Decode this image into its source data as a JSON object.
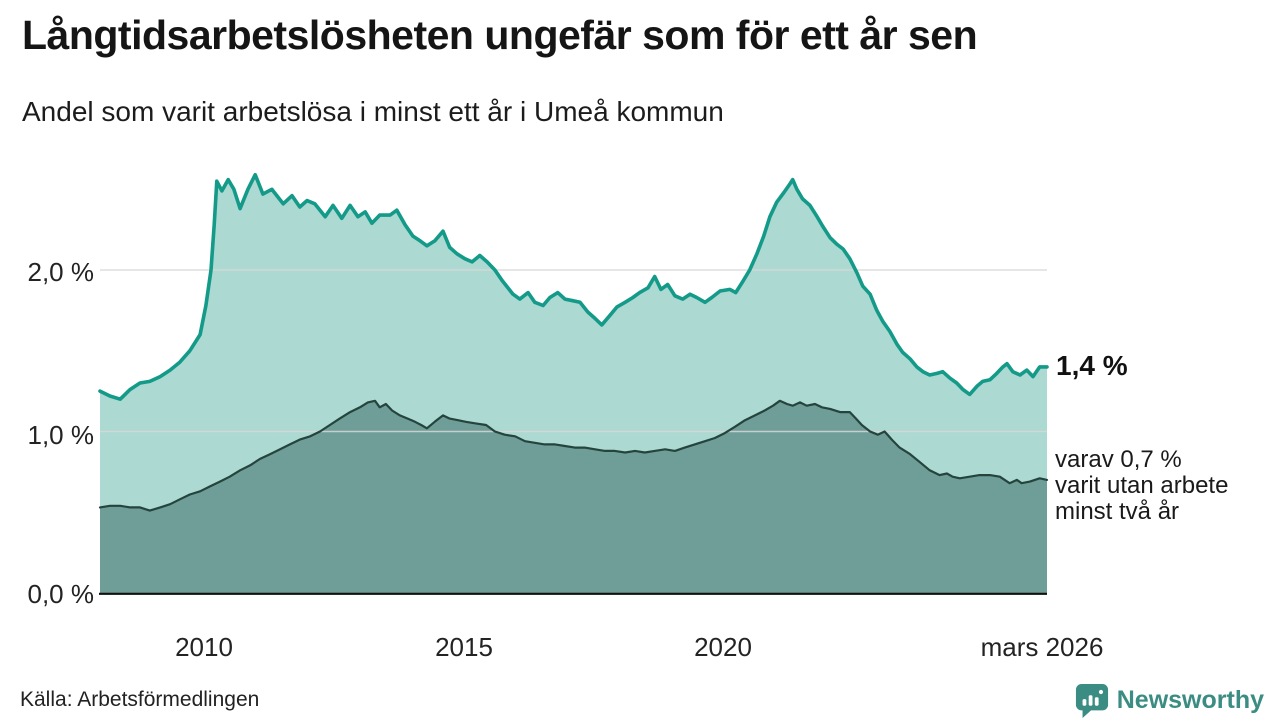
{
  "header": {
    "title": "Långtidsarbetslösheten ungefär som för ett år sen",
    "subtitle": "Andel som varit arbetslösa i minst ett år i Umeå kommun"
  },
  "source": {
    "label": "Källa: Arbetsförmedlingen"
  },
  "logo": {
    "brand": "Newsworthy",
    "color": "#3b8c82",
    "icon": "speech-bubble-bar-chart-icon"
  },
  "colors": {
    "background": "#ffffff",
    "series1_line": "#149a88",
    "series1_fill": "#acd9d2",
    "series2_line": "#25443e",
    "series2_fill": "#6f9e99",
    "gridline": "#d7d7d7",
    "axis": "#101010",
    "text": "#1a1a1a"
  },
  "chart_data": {
    "type": "area",
    "title": "Långtidsarbetslösheten ungefär som för ett år sen",
    "subtitle": "Andel som varit arbetslösa i minst ett år i Umeå kommun",
    "unit": "percent",
    "x_range": [
      2008.0,
      2026.25
    ],
    "y_range": [
      0,
      2.75
    ],
    "grid": "horizontal",
    "legend_position": "right-annotations",
    "x_ticks": [
      {
        "value": 2010,
        "label": "2010"
      },
      {
        "value": 2015,
        "label": "2015"
      },
      {
        "value": 2020,
        "label": "2020"
      },
      {
        "value": 2026.2,
        "label": "mars 2026"
      }
    ],
    "y_ticks": [
      {
        "value": 0.0,
        "label": "0,0 %"
      },
      {
        "value": 1.0,
        "label": "1,0 %"
      },
      {
        "value": 2.0,
        "label": "2,0 %"
      }
    ],
    "series": [
      {
        "name": "Andel som varit arbetslösa i minst ett år",
        "dataName": "unemployed-min-one-year",
        "color": "#149a88",
        "fill": "#acd9d2",
        "last_value": 1.4,
        "end_label": "1,4 %",
        "points": [
          [
            2008.0,
            1.25
          ],
          [
            2008.19,
            1.22
          ],
          [
            2008.39,
            1.2
          ],
          [
            2008.58,
            1.26
          ],
          [
            2008.77,
            1.3
          ],
          [
            2008.96,
            1.31
          ],
          [
            2009.16,
            1.34
          ],
          [
            2009.35,
            1.38
          ],
          [
            2009.54,
            1.43
          ],
          [
            2009.73,
            1.5
          ],
          [
            2009.93,
            1.6
          ],
          [
            2010.04,
            1.78
          ],
          [
            2010.14,
            2.0
          ],
          [
            2010.2,
            2.28
          ],
          [
            2010.25,
            2.55
          ],
          [
            2010.35,
            2.49
          ],
          [
            2010.47,
            2.56
          ],
          [
            2010.58,
            2.5
          ],
          [
            2010.7,
            2.38
          ],
          [
            2010.85,
            2.5
          ],
          [
            2010.99,
            2.59
          ],
          [
            2011.14,
            2.47
          ],
          [
            2011.31,
            2.5
          ],
          [
            2011.53,
            2.41
          ],
          [
            2011.7,
            2.46
          ],
          [
            2011.85,
            2.39
          ],
          [
            2011.99,
            2.43
          ],
          [
            2012.14,
            2.41
          ],
          [
            2012.34,
            2.33
          ],
          [
            2012.49,
            2.4
          ],
          [
            2012.66,
            2.32
          ],
          [
            2012.82,
            2.4
          ],
          [
            2012.97,
            2.33
          ],
          [
            2013.11,
            2.36
          ],
          [
            2013.24,
            2.29
          ],
          [
            2013.39,
            2.34
          ],
          [
            2013.59,
            2.34
          ],
          [
            2013.72,
            2.37
          ],
          [
            2013.88,
            2.28
          ],
          [
            2014.03,
            2.21
          ],
          [
            2014.17,
            2.18
          ],
          [
            2014.3,
            2.15
          ],
          [
            2014.45,
            2.18
          ],
          [
            2014.61,
            2.24
          ],
          [
            2014.74,
            2.14
          ],
          [
            2014.88,
            2.1
          ],
          [
            2015.03,
            2.07
          ],
          [
            2015.17,
            2.05
          ],
          [
            2015.32,
            2.09
          ],
          [
            2015.46,
            2.05
          ],
          [
            2015.61,
            2.0
          ],
          [
            2015.76,
            1.93
          ],
          [
            2015.96,
            1.85
          ],
          [
            2016.09,
            1.82
          ],
          [
            2016.25,
            1.86
          ],
          [
            2016.38,
            1.8
          ],
          [
            2016.54,
            1.78
          ],
          [
            2016.67,
            1.83
          ],
          [
            2016.82,
            1.86
          ],
          [
            2016.96,
            1.82
          ],
          [
            2017.11,
            1.81
          ],
          [
            2017.25,
            1.8
          ],
          [
            2017.4,
            1.74
          ],
          [
            2017.54,
            1.7
          ],
          [
            2017.67,
            1.66
          ],
          [
            2017.83,
            1.72
          ],
          [
            2017.96,
            1.77
          ],
          [
            2018.12,
            1.8
          ],
          [
            2018.27,
            1.83
          ],
          [
            2018.4,
            1.86
          ],
          [
            2018.56,
            1.89
          ],
          [
            2018.69,
            1.96
          ],
          [
            2018.81,
            1.88
          ],
          [
            2018.94,
            1.91
          ],
          [
            2019.08,
            1.84
          ],
          [
            2019.23,
            1.82
          ],
          [
            2019.37,
            1.85
          ],
          [
            2019.5,
            1.83
          ],
          [
            2019.66,
            1.8
          ],
          [
            2019.79,
            1.83
          ],
          [
            2019.95,
            1.87
          ],
          [
            2020.14,
            1.88
          ],
          [
            2020.25,
            1.86
          ],
          [
            2020.39,
            1.93
          ],
          [
            2020.52,
            2.0
          ],
          [
            2020.66,
            2.1
          ],
          [
            2020.79,
            2.21
          ],
          [
            2020.91,
            2.33
          ],
          [
            2021.04,
            2.42
          ],
          [
            2021.18,
            2.48
          ],
          [
            2021.29,
            2.53
          ],
          [
            2021.35,
            2.56
          ],
          [
            2021.43,
            2.5
          ],
          [
            2021.54,
            2.44
          ],
          [
            2021.68,
            2.4
          ],
          [
            2021.82,
            2.33
          ],
          [
            2021.93,
            2.27
          ],
          [
            2022.07,
            2.2
          ],
          [
            2022.2,
            2.16
          ],
          [
            2022.32,
            2.13
          ],
          [
            2022.45,
            2.07
          ],
          [
            2022.59,
            1.98
          ],
          [
            2022.7,
            1.9
          ],
          [
            2022.84,
            1.85
          ],
          [
            2022.97,
            1.75
          ],
          [
            2023.09,
            1.68
          ],
          [
            2023.22,
            1.62
          ],
          [
            2023.36,
            1.54
          ],
          [
            2023.47,
            1.49
          ],
          [
            2023.61,
            1.45
          ],
          [
            2023.74,
            1.4
          ],
          [
            2023.86,
            1.37
          ],
          [
            2023.99,
            1.35
          ],
          [
            2024.13,
            1.36
          ],
          [
            2024.24,
            1.37
          ],
          [
            2024.38,
            1.33
          ],
          [
            2024.51,
            1.3
          ],
          [
            2024.63,
            1.26
          ],
          [
            2024.76,
            1.23
          ],
          [
            2024.9,
            1.28
          ],
          [
            2025.01,
            1.31
          ],
          [
            2025.15,
            1.32
          ],
          [
            2025.28,
            1.36
          ],
          [
            2025.4,
            1.4
          ],
          [
            2025.48,
            1.42
          ],
          [
            2025.59,
            1.37
          ],
          [
            2025.73,
            1.35
          ],
          [
            2025.86,
            1.38
          ],
          [
            2025.98,
            1.34
          ],
          [
            2026.11,
            1.4
          ],
          [
            2026.25,
            1.4
          ]
        ]
      },
      {
        "name": "varav varit utan arbete minst två år",
        "dataName": "unemployed-min-two-years",
        "color": "#25443e",
        "fill": "#6f9e99",
        "last_value": 0.7,
        "end_label": "varav 0,7 % varit utan arbete minst två år",
        "annotation_lines": [
          "varav 0,7 %",
          "varit utan arbete",
          "minst två år"
        ],
        "points": [
          [
            2008.0,
            0.53
          ],
          [
            2008.19,
            0.54
          ],
          [
            2008.39,
            0.54
          ],
          [
            2008.58,
            0.53
          ],
          [
            2008.77,
            0.53
          ],
          [
            2008.96,
            0.51
          ],
          [
            2009.16,
            0.53
          ],
          [
            2009.35,
            0.55
          ],
          [
            2009.54,
            0.58
          ],
          [
            2009.73,
            0.61
          ],
          [
            2009.93,
            0.63
          ],
          [
            2010.12,
            0.66
          ],
          [
            2010.31,
            0.69
          ],
          [
            2010.5,
            0.72
          ],
          [
            2010.7,
            0.76
          ],
          [
            2010.89,
            0.79
          ],
          [
            2011.08,
            0.83
          ],
          [
            2011.28,
            0.86
          ],
          [
            2011.47,
            0.89
          ],
          [
            2011.66,
            0.92
          ],
          [
            2011.85,
            0.95
          ],
          [
            2012.05,
            0.97
          ],
          [
            2012.24,
            1.0
          ],
          [
            2012.43,
            1.04
          ],
          [
            2012.62,
            1.08
          ],
          [
            2012.82,
            1.12
          ],
          [
            2013.01,
            1.15
          ],
          [
            2013.16,
            1.18
          ],
          [
            2013.3,
            1.19
          ],
          [
            2013.39,
            1.15
          ],
          [
            2013.51,
            1.17
          ],
          [
            2013.63,
            1.13
          ],
          [
            2013.78,
            1.1
          ],
          [
            2013.93,
            1.08
          ],
          [
            2014.07,
            1.06
          ],
          [
            2014.19,
            1.04
          ],
          [
            2014.3,
            1.02
          ],
          [
            2014.45,
            1.06
          ],
          [
            2014.61,
            1.1
          ],
          [
            2014.74,
            1.08
          ],
          [
            2014.9,
            1.07
          ],
          [
            2015.05,
            1.06
          ],
          [
            2015.24,
            1.05
          ],
          [
            2015.44,
            1.04
          ],
          [
            2015.61,
            1.0
          ],
          [
            2015.8,
            0.98
          ],
          [
            2016.0,
            0.97
          ],
          [
            2016.19,
            0.94
          ],
          [
            2016.38,
            0.93
          ],
          [
            2016.57,
            0.92
          ],
          [
            2016.77,
            0.92
          ],
          [
            2016.96,
            0.91
          ],
          [
            2017.15,
            0.9
          ],
          [
            2017.34,
            0.9
          ],
          [
            2017.54,
            0.89
          ],
          [
            2017.73,
            0.88
          ],
          [
            2017.92,
            0.88
          ],
          [
            2018.12,
            0.87
          ],
          [
            2018.31,
            0.88
          ],
          [
            2018.5,
            0.87
          ],
          [
            2018.69,
            0.88
          ],
          [
            2018.89,
            0.89
          ],
          [
            2019.08,
            0.88
          ],
          [
            2019.27,
            0.9
          ],
          [
            2019.46,
            0.92
          ],
          [
            2019.66,
            0.94
          ],
          [
            2019.85,
            0.96
          ],
          [
            2020.04,
            0.99
          ],
          [
            2020.24,
            1.03
          ],
          [
            2020.43,
            1.07
          ],
          [
            2020.62,
            1.1
          ],
          [
            2020.81,
            1.13
          ],
          [
            2020.97,
            1.16
          ],
          [
            2021.1,
            1.19
          ],
          [
            2021.24,
            1.17
          ],
          [
            2021.35,
            1.16
          ],
          [
            2021.49,
            1.18
          ],
          [
            2021.62,
            1.16
          ],
          [
            2021.78,
            1.17
          ],
          [
            2021.91,
            1.15
          ],
          [
            2022.07,
            1.14
          ],
          [
            2022.26,
            1.12
          ],
          [
            2022.45,
            1.12
          ],
          [
            2022.57,
            1.08
          ],
          [
            2022.68,
            1.04
          ],
          [
            2022.84,
            1.0
          ],
          [
            2022.99,
            0.98
          ],
          [
            2023.12,
            1.0
          ],
          [
            2023.26,
            0.95
          ],
          [
            2023.41,
            0.9
          ],
          [
            2023.61,
            0.86
          ],
          [
            2023.8,
            0.81
          ],
          [
            2023.99,
            0.76
          ],
          [
            2024.18,
            0.73
          ],
          [
            2024.32,
            0.74
          ],
          [
            2024.43,
            0.72
          ],
          [
            2024.57,
            0.71
          ],
          [
            2024.76,
            0.72
          ],
          [
            2024.95,
            0.73
          ],
          [
            2025.15,
            0.73
          ],
          [
            2025.34,
            0.72
          ],
          [
            2025.53,
            0.68
          ],
          [
            2025.67,
            0.7
          ],
          [
            2025.76,
            0.68
          ],
          [
            2025.92,
            0.69
          ],
          [
            2026.11,
            0.71
          ],
          [
            2026.25,
            0.7
          ]
        ]
      }
    ]
  }
}
